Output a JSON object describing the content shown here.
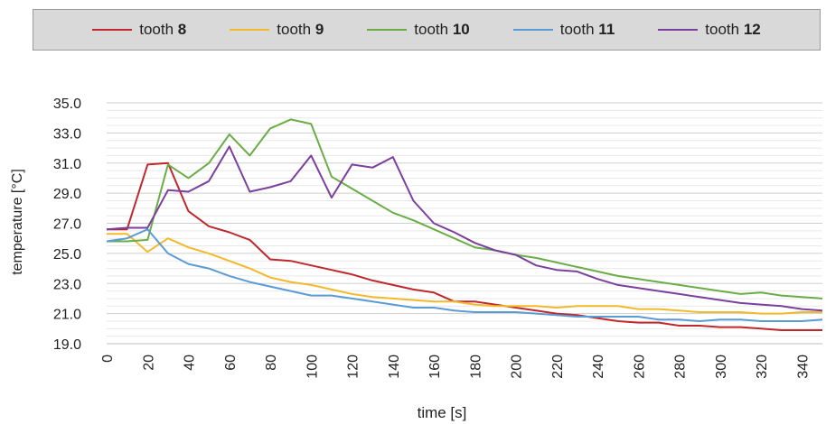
{
  "chart_data": {
    "type": "line",
    "xlabel": "time [s]",
    "ylabel": "temperature [°C]",
    "xlim": [
      0,
      350
    ],
    "ylim": [
      19.0,
      35.0
    ],
    "y_ticks": [
      "19.0",
      "21.0",
      "23.0",
      "25.0",
      "27.0",
      "29.0",
      "31.0",
      "33.0",
      "35.0"
    ],
    "x_ticks": [
      "0",
      "20",
      "40",
      "60",
      "80",
      "100",
      "120",
      "140",
      "160",
      "180",
      "200",
      "220",
      "240",
      "260",
      "280",
      "300",
      "320",
      "340"
    ],
    "grid": true,
    "legend_position": "top",
    "x": [
      0,
      10,
      20,
      30,
      40,
      50,
      60,
      70,
      80,
      90,
      100,
      110,
      120,
      130,
      140,
      150,
      160,
      170,
      180,
      190,
      200,
      210,
      220,
      230,
      240,
      250,
      260,
      270,
      280,
      290,
      300,
      310,
      320,
      330,
      340,
      350
    ],
    "series": [
      {
        "prefix": "tooth",
        "number": "8",
        "color": "#c0282d",
        "values": [
          26.6,
          26.6,
          30.9,
          31.0,
          27.8,
          26.8,
          26.4,
          25.9,
          24.6,
          24.5,
          24.2,
          23.9,
          23.6,
          23.2,
          22.9,
          22.6,
          22.4,
          21.8,
          21.8,
          21.6,
          21.4,
          21.2,
          21.0,
          20.9,
          20.7,
          20.5,
          20.4,
          20.4,
          20.2,
          20.2,
          20.1,
          20.1,
          20.0,
          19.9,
          19.9,
          19.9
        ]
      },
      {
        "prefix": "tooth",
        "number": "9",
        "color": "#f2b92b",
        "values": [
          26.3,
          26.3,
          25.1,
          26.0,
          25.4,
          25.0,
          24.5,
          24.0,
          23.4,
          23.1,
          22.9,
          22.6,
          22.3,
          22.1,
          22.0,
          21.9,
          21.8,
          21.8,
          21.6,
          21.5,
          21.5,
          21.5,
          21.4,
          21.5,
          21.5,
          21.5,
          21.3,
          21.3,
          21.2,
          21.1,
          21.1,
          21.1,
          21.0,
          21.0,
          21.1,
          21.1
        ]
      },
      {
        "prefix": "tooth",
        "number": "10",
        "color": "#6aad46",
        "values": [
          25.8,
          25.8,
          25.9,
          30.9,
          30.0,
          31.0,
          32.9,
          31.5,
          33.3,
          33.9,
          33.6,
          30.1,
          29.3,
          28.5,
          27.7,
          27.2,
          26.6,
          26.0,
          25.4,
          25.2,
          24.9,
          24.7,
          24.4,
          24.1,
          23.8,
          23.5,
          23.3,
          23.1,
          22.9,
          22.7,
          22.5,
          22.3,
          22.4,
          22.2,
          22.1,
          22.0
        ]
      },
      {
        "prefix": "tooth",
        "number": "11",
        "color": "#5b9bd5",
        "values": [
          25.8,
          26.0,
          26.6,
          25.0,
          24.3,
          24.0,
          23.5,
          23.1,
          22.8,
          22.5,
          22.2,
          22.2,
          22.0,
          21.8,
          21.6,
          21.4,
          21.4,
          21.2,
          21.1,
          21.1,
          21.1,
          21.0,
          20.9,
          20.8,
          20.8,
          20.8,
          20.8,
          20.6,
          20.6,
          20.5,
          20.6,
          20.6,
          20.5,
          20.5,
          20.5,
          20.6
        ]
      },
      {
        "prefix": "tooth",
        "number": "12",
        "color": "#7b3f9e",
        "values": [
          26.6,
          26.7,
          26.7,
          29.2,
          29.1,
          29.8,
          32.1,
          29.1,
          29.4,
          29.8,
          31.5,
          28.7,
          30.9,
          30.7,
          31.4,
          28.5,
          27.0,
          26.4,
          25.7,
          25.2,
          24.9,
          24.2,
          23.9,
          23.8,
          23.3,
          22.9,
          22.7,
          22.5,
          22.3,
          22.1,
          21.9,
          21.7,
          21.6,
          21.5,
          21.3,
          21.2
        ]
      }
    ]
  }
}
